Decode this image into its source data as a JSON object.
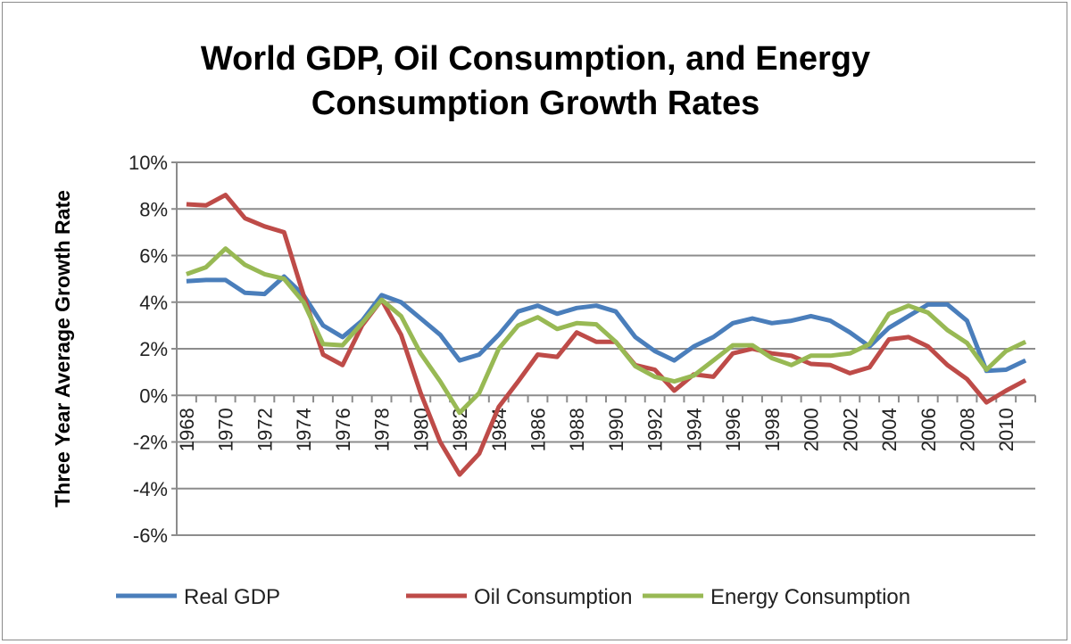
{
  "chart_data": {
    "type": "line",
    "title_lines": [
      "World GDP,  Oil Consumption, and Energy",
      "Consumption Growth Rates"
    ],
    "xlabel": "",
    "ylabel": "Three Year Average Growth Rate",
    "ylim": [
      -6,
      10
    ],
    "yticks": [
      -6,
      -4,
      -2,
      0,
      2,
      4,
      6,
      8,
      10
    ],
    "ytick_labels": [
      "-6%",
      "-4%",
      "-2%",
      "0%",
      "2%",
      "4%",
      "6%",
      "8%",
      "10%"
    ],
    "grid": true,
    "legend_position": "bottom",
    "x": [
      1968,
      1969,
      1970,
      1971,
      1972,
      1973,
      1974,
      1975,
      1976,
      1977,
      1978,
      1979,
      1980,
      1981,
      1982,
      1983,
      1984,
      1985,
      1986,
      1987,
      1988,
      1989,
      1990,
      1991,
      1992,
      1993,
      1994,
      1995,
      1996,
      1997,
      1998,
      1999,
      2000,
      2001,
      2002,
      2003,
      2004,
      2005,
      2006,
      2007,
      2008,
      2009,
      2010,
      2011
    ],
    "xtick_labels": [
      "1968",
      "1970",
      "1972",
      "1974",
      "1976",
      "1978",
      "1980",
      "1982",
      "1984",
      "1986",
      "1988",
      "1990",
      "1992",
      "1994",
      "1996",
      "1998",
      "2000",
      "2002",
      "2004",
      "2006",
      "2008",
      "2010"
    ],
    "series": [
      {
        "name": "Real GDP",
        "color": "#4a7ebb",
        "values": [
          4.9,
          4.95,
          4.95,
          4.4,
          4.35,
          5.1,
          4.3,
          3.0,
          2.5,
          3.2,
          4.3,
          4.0,
          3.3,
          2.6,
          1.5,
          1.75,
          2.6,
          3.6,
          3.85,
          3.5,
          3.75,
          3.85,
          3.6,
          2.5,
          1.9,
          1.5,
          2.1,
          2.5,
          3.1,
          3.3,
          3.1,
          3.2,
          3.4,
          3.2,
          2.7,
          2.1,
          2.9,
          3.4,
          3.9,
          3.9,
          3.2,
          1.05,
          1.1,
          1.5
        ]
      },
      {
        "name": "Oil Consumption",
        "color": "#be4b48",
        "values": [
          8.2,
          8.15,
          8.6,
          7.6,
          7.25,
          7.0,
          4.3,
          1.75,
          1.3,
          3.0,
          4.1,
          2.6,
          0.1,
          -2.0,
          -3.4,
          -2.5,
          -0.5,
          0.6,
          1.75,
          1.65,
          2.7,
          2.3,
          2.3,
          1.3,
          1.1,
          0.2,
          0.9,
          0.8,
          1.8,
          2.0,
          1.8,
          1.7,
          1.35,
          1.3,
          0.95,
          1.2,
          2.4,
          2.5,
          2.1,
          1.3,
          0.7,
          -0.3,
          0.2,
          0.65
        ]
      },
      {
        "name": "Energy Consumption",
        "color": "#98b954",
        "values": [
          5.2,
          5.5,
          6.3,
          5.6,
          5.2,
          5.0,
          4.0,
          2.2,
          2.15,
          3.1,
          4.1,
          3.4,
          1.8,
          0.6,
          -0.75,
          0.1,
          2.0,
          3.0,
          3.35,
          2.85,
          3.1,
          3.05,
          2.3,
          1.25,
          0.8,
          0.6,
          0.85,
          1.5,
          2.15,
          2.15,
          1.6,
          1.3,
          1.7,
          1.7,
          1.8,
          2.2,
          3.5,
          3.85,
          3.55,
          2.8,
          2.25,
          1.1,
          1.9,
          2.3
        ]
      }
    ]
  }
}
